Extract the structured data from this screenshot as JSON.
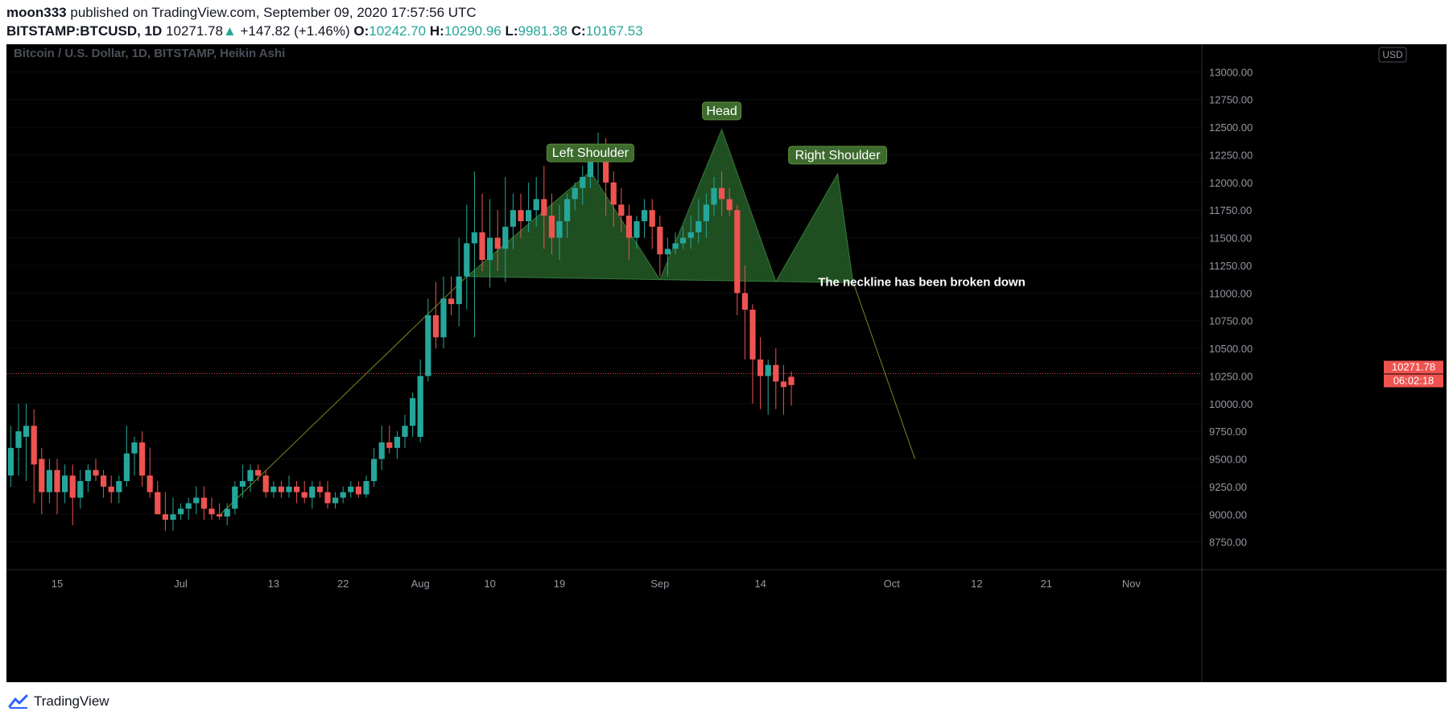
{
  "header": {
    "author": "moon333",
    "published_text": "published on TradingView.com, September 09, 2020 17:57:56 UTC",
    "symbol": "BITSTAMP:BTCUSD, 1D",
    "last": "10271.78",
    "change_arrow": "▲",
    "change": "+147.82 (+1.46%)",
    "open_label": "O:",
    "open": "10242.70",
    "high_label": "H:",
    "high": "10290.96",
    "low_label": "L:",
    "low": "9981.38",
    "close_label": "C:",
    "close": "10167.53"
  },
  "chart_data": {
    "type": "candlestick",
    "title": "Bitcoin / U.S. Dollar, 1D, BITSTAMP, Heikin Ashi",
    "currency": "USD",
    "ylim": [
      8500,
      13250
    ],
    "y_ticks": [
      "8750.00",
      "9000.00",
      "9250.00",
      "9500.00",
      "9750.00",
      "10000.00",
      "10250.00",
      "10500.00",
      "10750.00",
      "11000.00",
      "11250.00",
      "11500.00",
      "11750.00",
      "12000.00",
      "12250.00",
      "12500.00",
      "12750.00",
      "13000.00"
    ],
    "x_ticks": [
      {
        "label": "15",
        "day": 0
      },
      {
        "label": "Jul",
        "day": 16
      },
      {
        "label": "13",
        "day": 28
      },
      {
        "label": "22",
        "day": 37
      },
      {
        "label": "Aug",
        "day": 47
      },
      {
        "label": "10",
        "day": 56
      },
      {
        "label": "19",
        "day": 65
      },
      {
        "label": "Sep",
        "day": 78
      },
      {
        "label": "14",
        "day": 91
      },
      {
        "label": "Oct",
        "day": 108
      },
      {
        "label": "12",
        "day": 119
      },
      {
        "label": "21",
        "day": 128
      },
      {
        "label": "Nov",
        "day": 139
      }
    ],
    "last_price": "10271.78",
    "countdown": "06:02:18",
    "price_line": 10271.78,
    "candles": [
      [
        -6,
        9350,
        9800,
        9250,
        9600
      ],
      [
        -5,
        9600,
        10000,
        9350,
        9750
      ],
      [
        -4,
        9700,
        10000,
        9300,
        9800
      ],
      [
        -3,
        9800,
        9950,
        9100,
        9450
      ],
      [
        -2,
        9500,
        9600,
        9000,
        9200
      ],
      [
        -1,
        9200,
        9500,
        9100,
        9400
      ],
      [
        0,
        9400,
        9500,
        9000,
        9200
      ],
      [
        1,
        9200,
        9450,
        9100,
        9350
      ],
      [
        2,
        9350,
        9450,
        8900,
        9150
      ],
      [
        3,
        9150,
        9400,
        9050,
        9300
      ],
      [
        4,
        9300,
        9450,
        9200,
        9400
      ],
      [
        5,
        9400,
        9500,
        9300,
        9350
      ],
      [
        6,
        9350,
        9400,
        9150,
        9250
      ],
      [
        7,
        9250,
        9350,
        9100,
        9200
      ],
      [
        8,
        9200,
        9350,
        9100,
        9300
      ],
      [
        9,
        9300,
        9800,
        9250,
        9550
      ],
      [
        10,
        9550,
        9700,
        9350,
        9650
      ],
      [
        11,
        9650,
        9750,
        9250,
        9350
      ],
      [
        12,
        9350,
        9600,
        9150,
        9200
      ],
      [
        13,
        9200,
        9300,
        9000,
        9000
      ],
      [
        14,
        9000,
        9200,
        8850,
        8950
      ],
      [
        15,
        8950,
        9150,
        8850,
        9000
      ],
      [
        16,
        9000,
        9100,
        8950,
        9050
      ],
      [
        17,
        9050,
        9150,
        8950,
        9100
      ],
      [
        18,
        9100,
        9250,
        9000,
        9150
      ],
      [
        19,
        9150,
        9250,
        8950,
        9050
      ],
      [
        20,
        9050,
        9150,
        8950,
        9000
      ],
      [
        21,
        9000,
        9100,
        8950,
        8980
      ],
      [
        22,
        8980,
        9100,
        8900,
        9050
      ],
      [
        23,
        9050,
        9300,
        9000,
        9250
      ],
      [
        24,
        9250,
        9450,
        9150,
        9300
      ],
      [
        25,
        9300,
        9450,
        9200,
        9400
      ],
      [
        26,
        9400,
        9450,
        9300,
        9350
      ],
      [
        27,
        9350,
        9400,
        9150,
        9200
      ],
      [
        28,
        9200,
        9300,
        9150,
        9250
      ],
      [
        29,
        9250,
        9300,
        9150,
        9200
      ],
      [
        30,
        9200,
        9350,
        9150,
        9250
      ],
      [
        31,
        9250,
        9300,
        9100,
        9200
      ],
      [
        32,
        9200,
        9300,
        9100,
        9150
      ],
      [
        33,
        9150,
        9300,
        9050,
        9250
      ],
      [
        34,
        9250,
        9300,
        9150,
        9200
      ],
      [
        35,
        9200,
        9300,
        9050,
        9100
      ],
      [
        36,
        9100,
        9200,
        9050,
        9150
      ],
      [
        37,
        9150,
        9250,
        9100,
        9200
      ],
      [
        38,
        9200,
        9300,
        9150,
        9250
      ],
      [
        39,
        9250,
        9300,
        9150,
        9180
      ],
      [
        40,
        9180,
        9350,
        9150,
        9300
      ],
      [
        41,
        9300,
        9600,
        9250,
        9500
      ],
      [
        42,
        9500,
        9800,
        9400,
        9650
      ],
      [
        43,
        9650,
        9800,
        9550,
        9600
      ],
      [
        44,
        9600,
        9750,
        9500,
        9700
      ],
      [
        45,
        9700,
        9900,
        9600,
        9800
      ],
      [
        46,
        9800,
        10100,
        9700,
        10050
      ],
      [
        47,
        9700,
        10400,
        9650,
        10250
      ],
      [
        48,
        10250,
        10950,
        10200,
        10800
      ],
      [
        49,
        10800,
        11100,
        10500,
        10600
      ],
      [
        50,
        10600,
        11150,
        10500,
        10950
      ],
      [
        51,
        10950,
        11150,
        10800,
        10900
      ],
      [
        52,
        10900,
        11500,
        10700,
        11150
      ],
      [
        53,
        11150,
        11800,
        10850,
        11450
      ],
      [
        54,
        11450,
        12100,
        10600,
        11550
      ],
      [
        55,
        11550,
        11900,
        11200,
        11300
      ],
      [
        56,
        11300,
        11850,
        11050,
        11500
      ],
      [
        57,
        11500,
        11750,
        11200,
        11400
      ],
      [
        58,
        11400,
        12050,
        11100,
        11600
      ],
      [
        59,
        11600,
        11900,
        11400,
        11750
      ],
      [
        60,
        11750,
        11900,
        11500,
        11650
      ],
      [
        61,
        11650,
        12000,
        11550,
        11750
      ],
      [
        62,
        11750,
        12050,
        11600,
        11850
      ],
      [
        63,
        11850,
        12150,
        11400,
        11700
      ],
      [
        64,
        11700,
        11900,
        11350,
        11500
      ],
      [
        65,
        11500,
        11800,
        11300,
        11650
      ],
      [
        66,
        11650,
        11900,
        11500,
        11850
      ],
      [
        67,
        11850,
        12000,
        11750,
        11950
      ],
      [
        68,
        11950,
        12150,
        11800,
        12050
      ],
      [
        69,
        12050,
        12350,
        11950,
        12200
      ],
      [
        70,
        12200,
        12450,
        12000,
        12250
      ],
      [
        71,
        12250,
        12400,
        11700,
        12000
      ],
      [
        72,
        12000,
        12100,
        11600,
        11800
      ],
      [
        73,
        11800,
        11950,
        11550,
        11700
      ],
      [
        74,
        11700,
        11800,
        11300,
        11500
      ],
      [
        75,
        11500,
        11700,
        11400,
        11650
      ],
      [
        76,
        11650,
        11850,
        11500,
        11750
      ],
      [
        77,
        11750,
        11850,
        11400,
        11600
      ],
      [
        78,
        11600,
        11700,
        11150,
        11350
      ],
      [
        79,
        11350,
        11500,
        11150,
        11400
      ],
      [
        80,
        11400,
        11550,
        11350,
        11450
      ],
      [
        81,
        11450,
        11600,
        11400,
        11500
      ],
      [
        82,
        11500,
        11700,
        11400,
        11550
      ],
      [
        83,
        11550,
        11850,
        11450,
        11650
      ],
      [
        84,
        11650,
        11900,
        11500,
        11800
      ],
      [
        85,
        11800,
        12050,
        11700,
        11950
      ],
      [
        86,
        11950,
        12100,
        11700,
        11850
      ],
      [
        87,
        11850,
        11950,
        11700,
        11750
      ],
      [
        88,
        11750,
        11800,
        10800,
        11000
      ],
      [
        89,
        11000,
        11250,
        10400,
        10850
      ],
      [
        90,
        10850,
        10900,
        10000,
        10400
      ],
      [
        91,
        10400,
        10600,
        9950,
        10250
      ],
      [
        92,
        10250,
        10400,
        9900,
        10350
      ],
      [
        93,
        10350,
        10500,
        9950,
        10200
      ],
      [
        94,
        10200,
        10350,
        9900,
        10150
      ],
      [
        95,
        10243,
        10291,
        9981,
        10168
      ]
    ],
    "pattern": {
      "fill": "#388e3c",
      "left_shoulder_label": "Left Shoulder",
      "head_label": "Head",
      "right_shoulder_label": "Right Shoulder",
      "neckline": [
        [
          53,
          11150
        ],
        [
          97,
          11100
        ]
      ],
      "left_shoulder_peak": [
        69,
        12100
      ],
      "head_peak": [
        86,
        12480
      ],
      "right_shoulder_peak": [
        101,
        12080
      ]
    },
    "annotation": "The neckline has been broken down",
    "colors": {
      "up": "#26a69a",
      "down": "#ef5350",
      "accent": "#e0803a"
    }
  },
  "footer": {
    "brand": "TradingView"
  }
}
